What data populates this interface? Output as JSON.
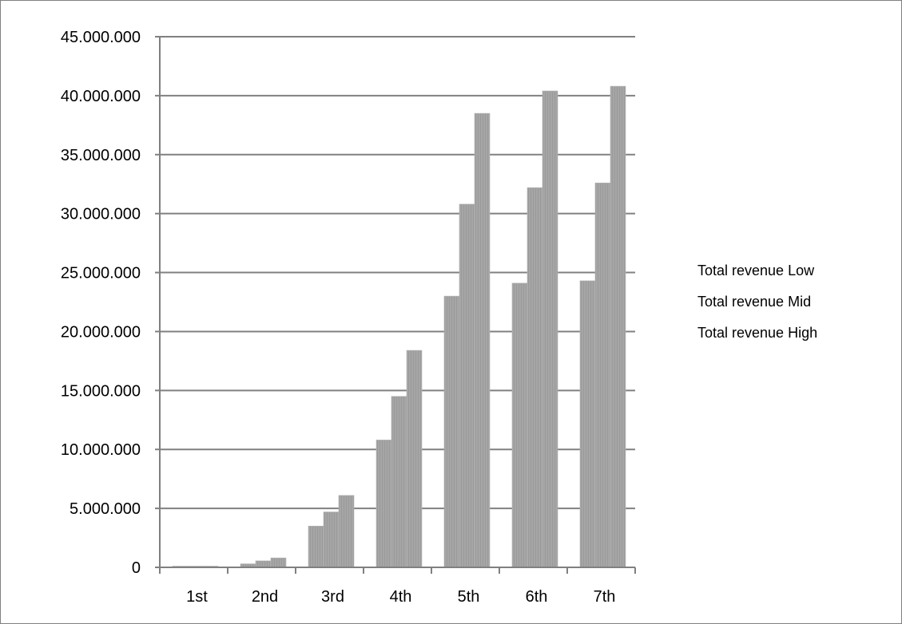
{
  "chart_data": {
    "type": "bar",
    "categories": [
      "1st",
      "2nd",
      "3rd",
      "4th",
      "5th",
      "6th",
      "7th"
    ],
    "series": [
      {
        "name": "Total revenue Low",
        "values": [
          0,
          300000,
          3500000,
          10800000,
          23000000,
          24100000,
          24300000
        ]
      },
      {
        "name": "Total revenue Mid",
        "values": [
          0,
          550000,
          4700000,
          14500000,
          30800000,
          32200000,
          32600000
        ]
      },
      {
        "name": "Total revenue High",
        "values": [
          0,
          800000,
          6100000,
          18400000,
          38500000,
          40400000,
          40800000
        ]
      }
    ],
    "ylim": [
      0,
      45000000
    ],
    "yticks": [
      0,
      5000000,
      10000000,
      15000000,
      20000000,
      25000000,
      30000000,
      35000000,
      40000000,
      45000000
    ],
    "ytick_labels": [
      "0",
      "5.000.000",
      "10.000.000",
      "15.000.000",
      "20.000.000",
      "25.000.000",
      "30.000.000",
      "35.000.000",
      "40.000.000",
      "45.000.000"
    ],
    "grid": true,
    "legend_position": "right",
    "bar_color": "#a6a6a6",
    "axis_color": "#808080"
  }
}
